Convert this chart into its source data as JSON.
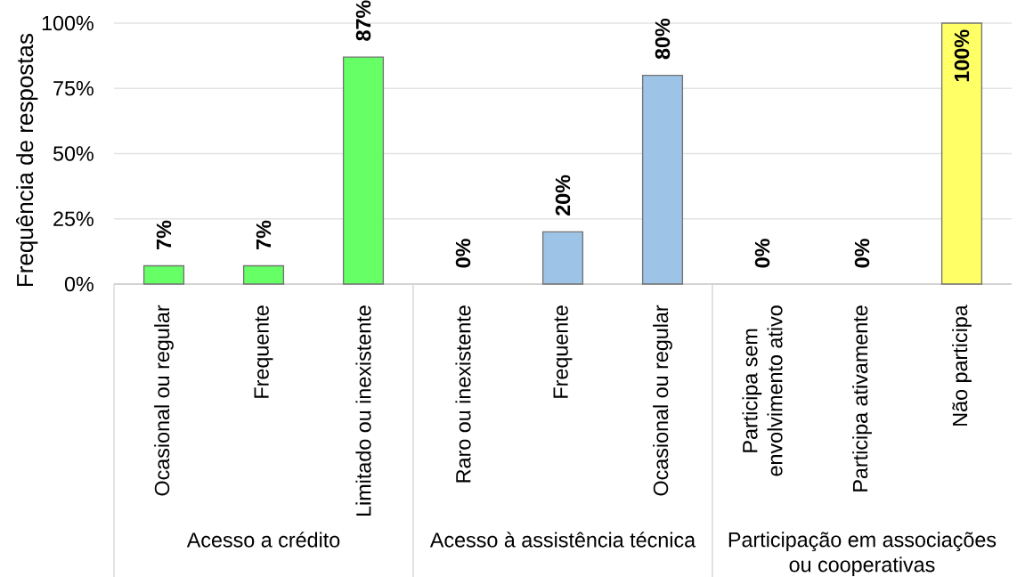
{
  "chart_data": {
    "type": "bar",
    "ylabel": "Frequência de respostas",
    "categories": [
      "Ocasional ou regular",
      "Frequente",
      "Limitado ou inexistente",
      "Raro ou inexistente",
      "Frequente",
      "Ocasional ou regular",
      "Participa sem envolvimento ativo",
      "Participa ativamente",
      "Não participa"
    ],
    "values": [
      7,
      7,
      87,
      0,
      20,
      80,
      0,
      0,
      100
    ],
    "colors": [
      "#66ff66",
      "#66ff66",
      "#66ff66",
      "#9dc3e6",
      "#9dc3e6",
      "#9dc3e6",
      "#ffff66",
      "#ffff66",
      "#ffff66"
    ],
    "value_labels": [
      "7%",
      "7%",
      "87%",
      "0%",
      "20%",
      "80%",
      "0%",
      "0%",
      "100%"
    ],
    "ylim": [
      0,
      100
    ],
    "yticks": [
      {
        "value": 0,
        "label": "0%"
      },
      {
        "value": 25,
        "label": "25%"
      },
      {
        "value": 50,
        "label": "50%"
      },
      {
        "value": 75,
        "label": "75%"
      },
      {
        "value": 100,
        "label": "100%"
      }
    ],
    "grid": "y",
    "annotations": [
      "Acesso a crédito",
      "Acesso à assistência técnica",
      "Participação em associações ou cooperativas"
    ]
  }
}
